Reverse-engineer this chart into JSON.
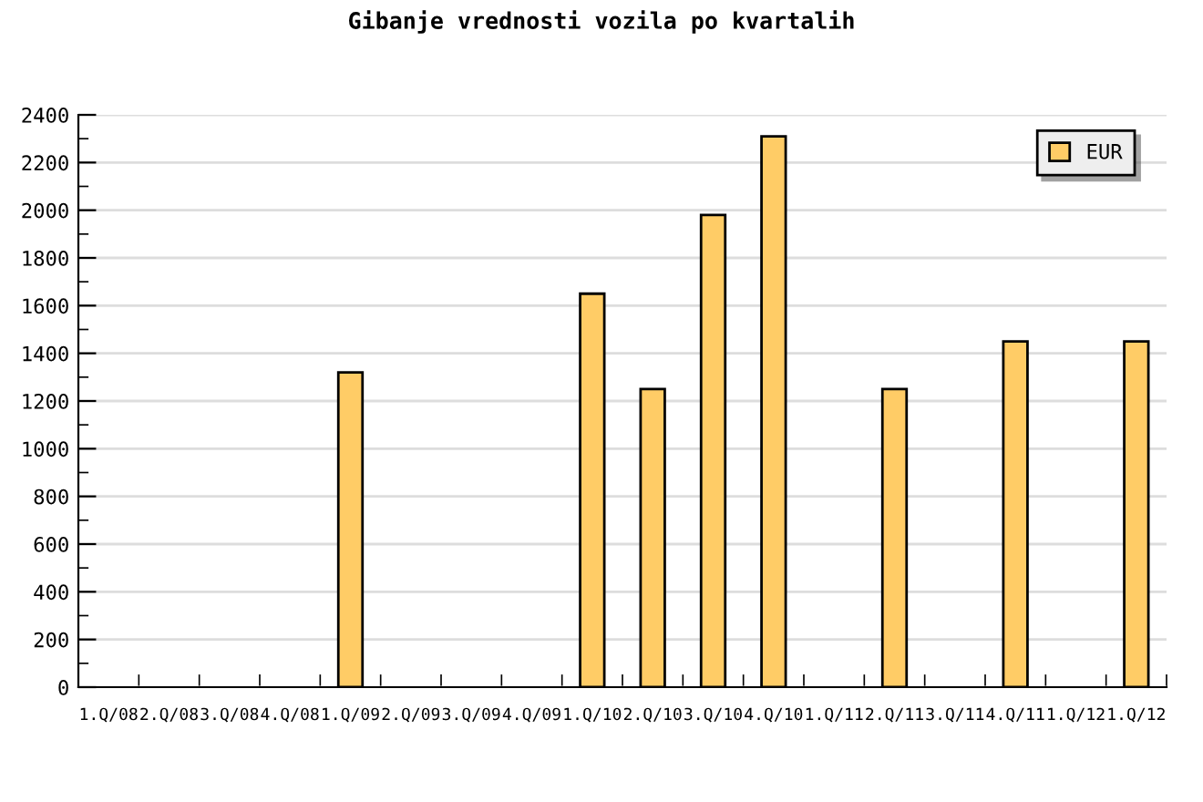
{
  "chart_data": {
    "type": "bar",
    "title": "Gibanje vrednosti vozila po kvartalih",
    "categories": [
      "1.Q/08",
      "2.Q/08",
      "3.Q/08",
      "4.Q/08",
      "1.Q/09",
      "2.Q/09",
      "3.Q/09",
      "4.Q/09",
      "1.Q/10",
      "2.Q/10",
      "3.Q/10",
      "4.Q/10",
      "1.Q/11",
      "2.Q/11",
      "3.Q/11",
      "4.Q/11",
      "1.Q/12",
      "1.Q/12"
    ],
    "series": [
      {
        "name": "EUR",
        "color": "#ffcc66",
        "values": [
          null,
          null,
          null,
          null,
          1320,
          null,
          null,
          null,
          1650,
          1250,
          1980,
          2310,
          null,
          1250,
          null,
          1450,
          null,
          1450
        ]
      }
    ],
    "ylim": [
      0,
      2400
    ],
    "yticks": [
      0,
      200,
      400,
      600,
      800,
      1000,
      1200,
      1400,
      1600,
      1800,
      2000,
      2200,
      2400
    ],
    "grid": "y",
    "legend": "top right"
  }
}
